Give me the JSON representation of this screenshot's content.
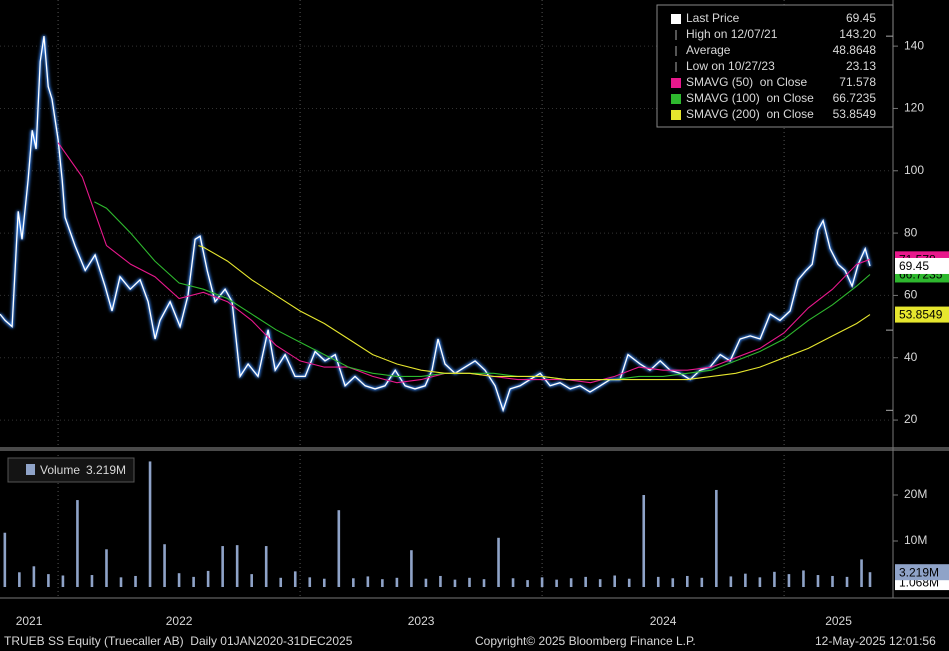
{
  "chart_data": [
    {
      "type": "line",
      "xlim": [
        2021.76,
        2025.45
      ],
      "xticks": [
        2021,
        2022,
        2023,
        2024,
        2025
      ],
      "ylim": [
        12,
        154.8
      ],
      "yticks": [
        20,
        40,
        60,
        80,
        100,
        120,
        140
      ],
      "grid": true,
      "series": [
        {
          "name": "Last Price",
          "color": "#ffffff",
          "legend_value": 69.45,
          "x": [
            2021.76,
            2021.781,
            2021.81,
            2021.835,
            2021.851,
            2021.876,
            2021.893,
            2021.909,
            2021.926,
            2021.942,
            2021.959,
            2021.975,
            2022.0,
            2022.017,
            2022.029,
            2022.07,
            2022.112,
            2022.153,
            2022.194,
            2022.223,
            2022.256,
            2022.298,
            2022.339,
            2022.372,
            2022.401,
            2022.421,
            2022.463,
            2022.504,
            2022.537,
            2022.566,
            2022.587,
            2022.616,
            2022.649,
            2022.69,
            2022.719,
            2022.752,
            2022.785,
            2022.826,
            2022.868,
            2022.897,
            2022.938,
            2022.979,
            2023.021,
            2023.062,
            2023.103,
            2023.145,
            2023.186,
            2023.227,
            2023.269,
            2023.31,
            2023.351,
            2023.393,
            2023.434,
            2023.475,
            2023.517,
            2023.545,
            2023.57,
            2023.599,
            2023.64,
            2023.682,
            2023.723,
            2023.764,
            2023.806,
            2023.839,
            2023.868,
            2023.909,
            2023.95,
            2023.992,
            2024.033,
            2024.074,
            2024.116,
            2024.157,
            2024.198,
            2024.24,
            2024.281,
            2024.322,
            2024.355,
            2024.405,
            2024.446,
            2024.488,
            2024.529,
            2024.57,
            2024.612,
            2024.653,
            2024.694,
            2024.736,
            2024.777,
            2024.818,
            2024.86,
            2024.901,
            2024.942,
            2024.983,
            2025.025,
            2025.058,
            2025.091,
            2025.116,
            2025.14,
            2025.161,
            2025.19,
            2025.223,
            2025.252,
            2025.281,
            2025.306,
            2025.335,
            2025.355
          ],
          "values": [
            54,
            52,
            50,
            87,
            78,
            97,
            113,
            107,
            135,
            143.2,
            127,
            123,
            110,
            97,
            85,
            76,
            68,
            73,
            63,
            55,
            66,
            62,
            65,
            58,
            46,
            52,
            58,
            50,
            60,
            78,
            79,
            68,
            58,
            62,
            58,
            34,
            38,
            34,
            49,
            36,
            41,
            34,
            34,
            42,
            39,
            41,
            31,
            34,
            31,
            30,
            31,
            36,
            31,
            30,
            31,
            36,
            46,
            38,
            35,
            37,
            39,
            36,
            31,
            23.13,
            30,
            31,
            33,
            35,
            31,
            32,
            30,
            31,
            29,
            31,
            33,
            33,
            41,
            38,
            36,
            39,
            36,
            35,
            33,
            36,
            37,
            41,
            39,
            46,
            47,
            46,
            54,
            52,
            55,
            65,
            68,
            70,
            81,
            84,
            75,
            70,
            68,
            63,
            70,
            75,
            69.45
          ]
        },
        {
          "name": "SMAVG (50)  on Close",
          "color": "#e8188c",
          "legend_value": 71.578,
          "x": [
            2022.0,
            2022.1,
            2022.2,
            2022.3,
            2022.4,
            2022.5,
            2022.6,
            2022.7,
            2022.8,
            2022.9,
            2023.0,
            2023.1,
            2023.2,
            2023.3,
            2023.4,
            2023.5,
            2023.6,
            2023.7,
            2023.8,
            2023.9,
            2024.0,
            2024.1,
            2024.2,
            2024.3,
            2024.4,
            2024.5,
            2024.6,
            2024.7,
            2024.8,
            2024.9,
            2025.0,
            2025.1,
            2025.2,
            2025.3,
            2025.355
          ],
          "values": [
            109,
            98,
            76,
            70,
            66,
            59,
            61,
            58,
            52,
            44,
            39,
            37,
            37,
            34,
            32,
            33,
            35,
            35,
            34,
            33,
            33,
            33,
            32,
            34,
            37,
            36,
            36,
            37,
            40,
            43,
            48,
            56,
            62,
            70,
            71.578
          ]
        },
        {
          "name": "SMAVG (100)  on Close",
          "color": "#2eb82e",
          "legend_value": 66.7235,
          "x": [
            2022.15,
            2022.2,
            2022.3,
            2022.4,
            2022.5,
            2022.6,
            2022.7,
            2022.8,
            2022.9,
            2023.0,
            2023.1,
            2023.2,
            2023.3,
            2023.4,
            2023.5,
            2023.6,
            2023.7,
            2023.8,
            2023.9,
            2024.0,
            2024.1,
            2024.2,
            2024.3,
            2024.4,
            2024.5,
            2024.6,
            2024.7,
            2024.8,
            2024.9,
            2025.0,
            2025.1,
            2025.2,
            2025.3,
            2025.355
          ],
          "values": [
            90,
            88,
            80,
            71,
            64,
            62,
            59,
            54,
            49,
            45,
            41,
            37,
            35,
            34,
            34,
            35,
            35,
            35,
            34,
            34,
            33,
            33,
            33,
            34,
            34,
            35,
            36,
            39,
            42,
            46,
            52,
            57,
            63,
            66.7235
          ]
        },
        {
          "name": "SMAVG (200)  on Close",
          "color": "#e6e62e",
          "legend_value": 53.8549,
          "x": [
            2022.58,
            2022.6,
            2022.7,
            2022.8,
            2022.9,
            2023.0,
            2023.1,
            2023.2,
            2023.3,
            2023.4,
            2023.5,
            2023.6,
            2023.7,
            2023.8,
            2023.9,
            2024.0,
            2024.1,
            2024.2,
            2024.3,
            2024.4,
            2024.5,
            2024.6,
            2024.7,
            2024.8,
            2024.9,
            2025.0,
            2025.1,
            2025.2,
            2025.3,
            2025.355
          ],
          "values": [
            76,
            75.5,
            71,
            65,
            60,
            55,
            51,
            46,
            41,
            38,
            36,
            35,
            35,
            34,
            34,
            34,
            33,
            33,
            33,
            33,
            33,
            33,
            34,
            35,
            37,
            40,
            43,
            47,
            51,
            53.8549
          ]
        }
      ],
      "stats": [
        {
          "label": "High on 12/07/21",
          "value": 143.2,
          "value_label": "143.20"
        },
        {
          "label": "Average",
          "value": 48.8648
        },
        {
          "label": "Low on 10/27/23",
          "value": 23.13
        }
      ]
    },
    {
      "type": "bar",
      "xlim": [
        2021.76,
        2025.45
      ],
      "xticks": [
        2021,
        2022,
        2023,
        2024,
        2025
      ],
      "ylim": [
        0,
        28700000
      ],
      "yticks": [
        {
          "value": 10000000,
          "label": "10M"
        },
        {
          "value": 20000000,
          "label": "20M"
        }
      ],
      "average_value": 1068000,
      "average_label": "1.068M",
      "series": [
        {
          "name": "Volume",
          "color": "#8fa3c8",
          "legend_value": 3219000,
          "legend_value_label": "3.219M",
          "x": [
            2021.78,
            2021.84,
            2021.9,
            2021.96,
            2022.02,
            2022.08,
            2022.14,
            2022.2,
            2022.26,
            2022.32,
            2022.38,
            2022.44,
            2022.5,
            2022.56,
            2022.62,
            2022.68,
            2022.74,
            2022.8,
            2022.86,
            2022.92,
            2022.98,
            2023.04,
            2023.1,
            2023.16,
            2023.22,
            2023.28,
            2023.34,
            2023.4,
            2023.46,
            2023.52,
            2023.58,
            2023.64,
            2023.7,
            2023.76,
            2023.82,
            2023.88,
            2023.94,
            2024.0,
            2024.06,
            2024.12,
            2024.18,
            2024.24,
            2024.3,
            2024.36,
            2024.42,
            2024.48,
            2024.54,
            2024.6,
            2024.66,
            2024.72,
            2024.78,
            2024.84,
            2024.9,
            2024.96,
            2025.02,
            2025.08,
            2025.14,
            2025.2,
            2025.26,
            2025.32,
            2025.355
          ],
          "values": [
            11800000,
            3200000,
            4500000,
            2800000,
            2500000,
            18900000,
            2600000,
            8200000,
            2100000,
            2400000,
            27300000,
            9300000,
            3000000,
            2200000,
            3500000,
            8900000,
            9100000,
            2800000,
            8900000,
            2000000,
            3400000,
            2100000,
            1800000,
            16700000,
            1900000,
            2300000,
            1700000,
            2000000,
            8000000,
            1800000,
            2400000,
            1600000,
            2000000,
            1700000,
            10700000,
            1900000,
            1500000,
            2100000,
            1600000,
            1900000,
            2200000,
            1700000,
            2500000,
            1800000,
            20000000,
            2200000,
            1900000,
            2400000,
            2000000,
            21100000,
            2300000,
            2900000,
            2100000,
            3300000,
            2800000,
            3600000,
            2600000,
            2400000,
            2200000,
            6000000,
            3219000
          ]
        }
      ]
    }
  ],
  "footer": {
    "security": "TRUEB SS Equity (Truecaller AB)  Daily 01JAN2020-31DEC2025",
    "copyright": "Copyright© 2025 Bloomberg Finance L.P.",
    "timestamp": "12-May-2025 12:01:56"
  }
}
